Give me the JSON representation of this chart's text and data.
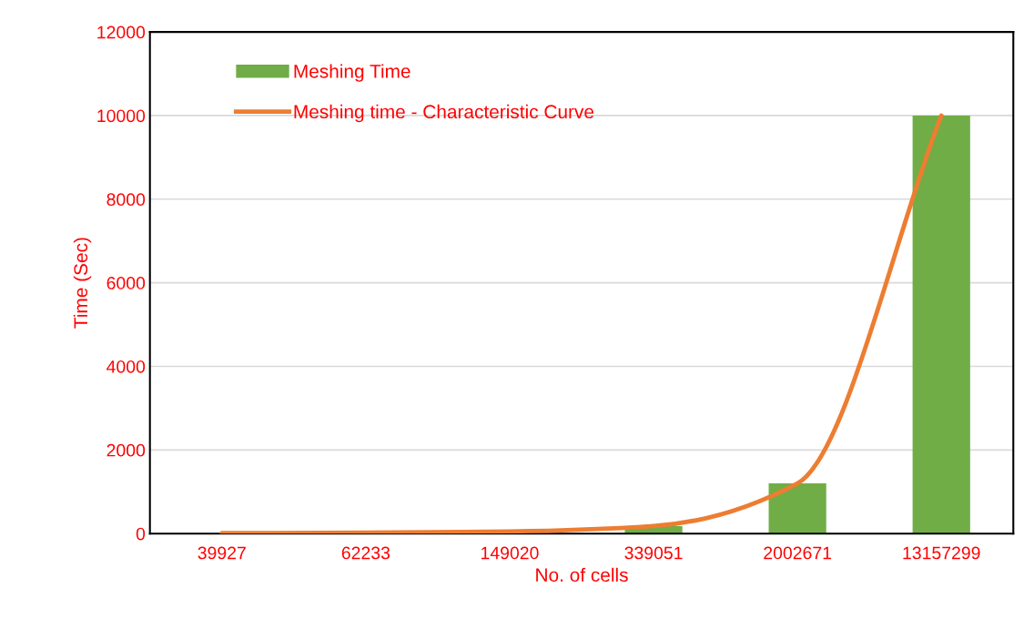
{
  "chart_data": {
    "type": "bar",
    "xlabel": "No. of cells",
    "ylabel": "Time (Sec)",
    "categories": [
      "39927",
      "62233",
      "149020",
      "339051",
      "2002671",
      "13157299"
    ],
    "series": [
      {
        "name": "Meshing Time",
        "color": "#70ad47",
        "values": [
          null,
          null,
          null,
          180,
          1200,
          10000
        ]
      },
      {
        "name": "Meshing time - Characteristic Curve",
        "type": "line",
        "color": "#ed7d31",
        "values": [
          10,
          20,
          50,
          180,
          1200,
          10000
        ]
      }
    ],
    "ylim": [
      0,
      12000
    ],
    "yticks": [
      0,
      2000,
      4000,
      6000,
      8000,
      10000,
      12000
    ],
    "grid": "y",
    "legend": "top left"
  }
}
